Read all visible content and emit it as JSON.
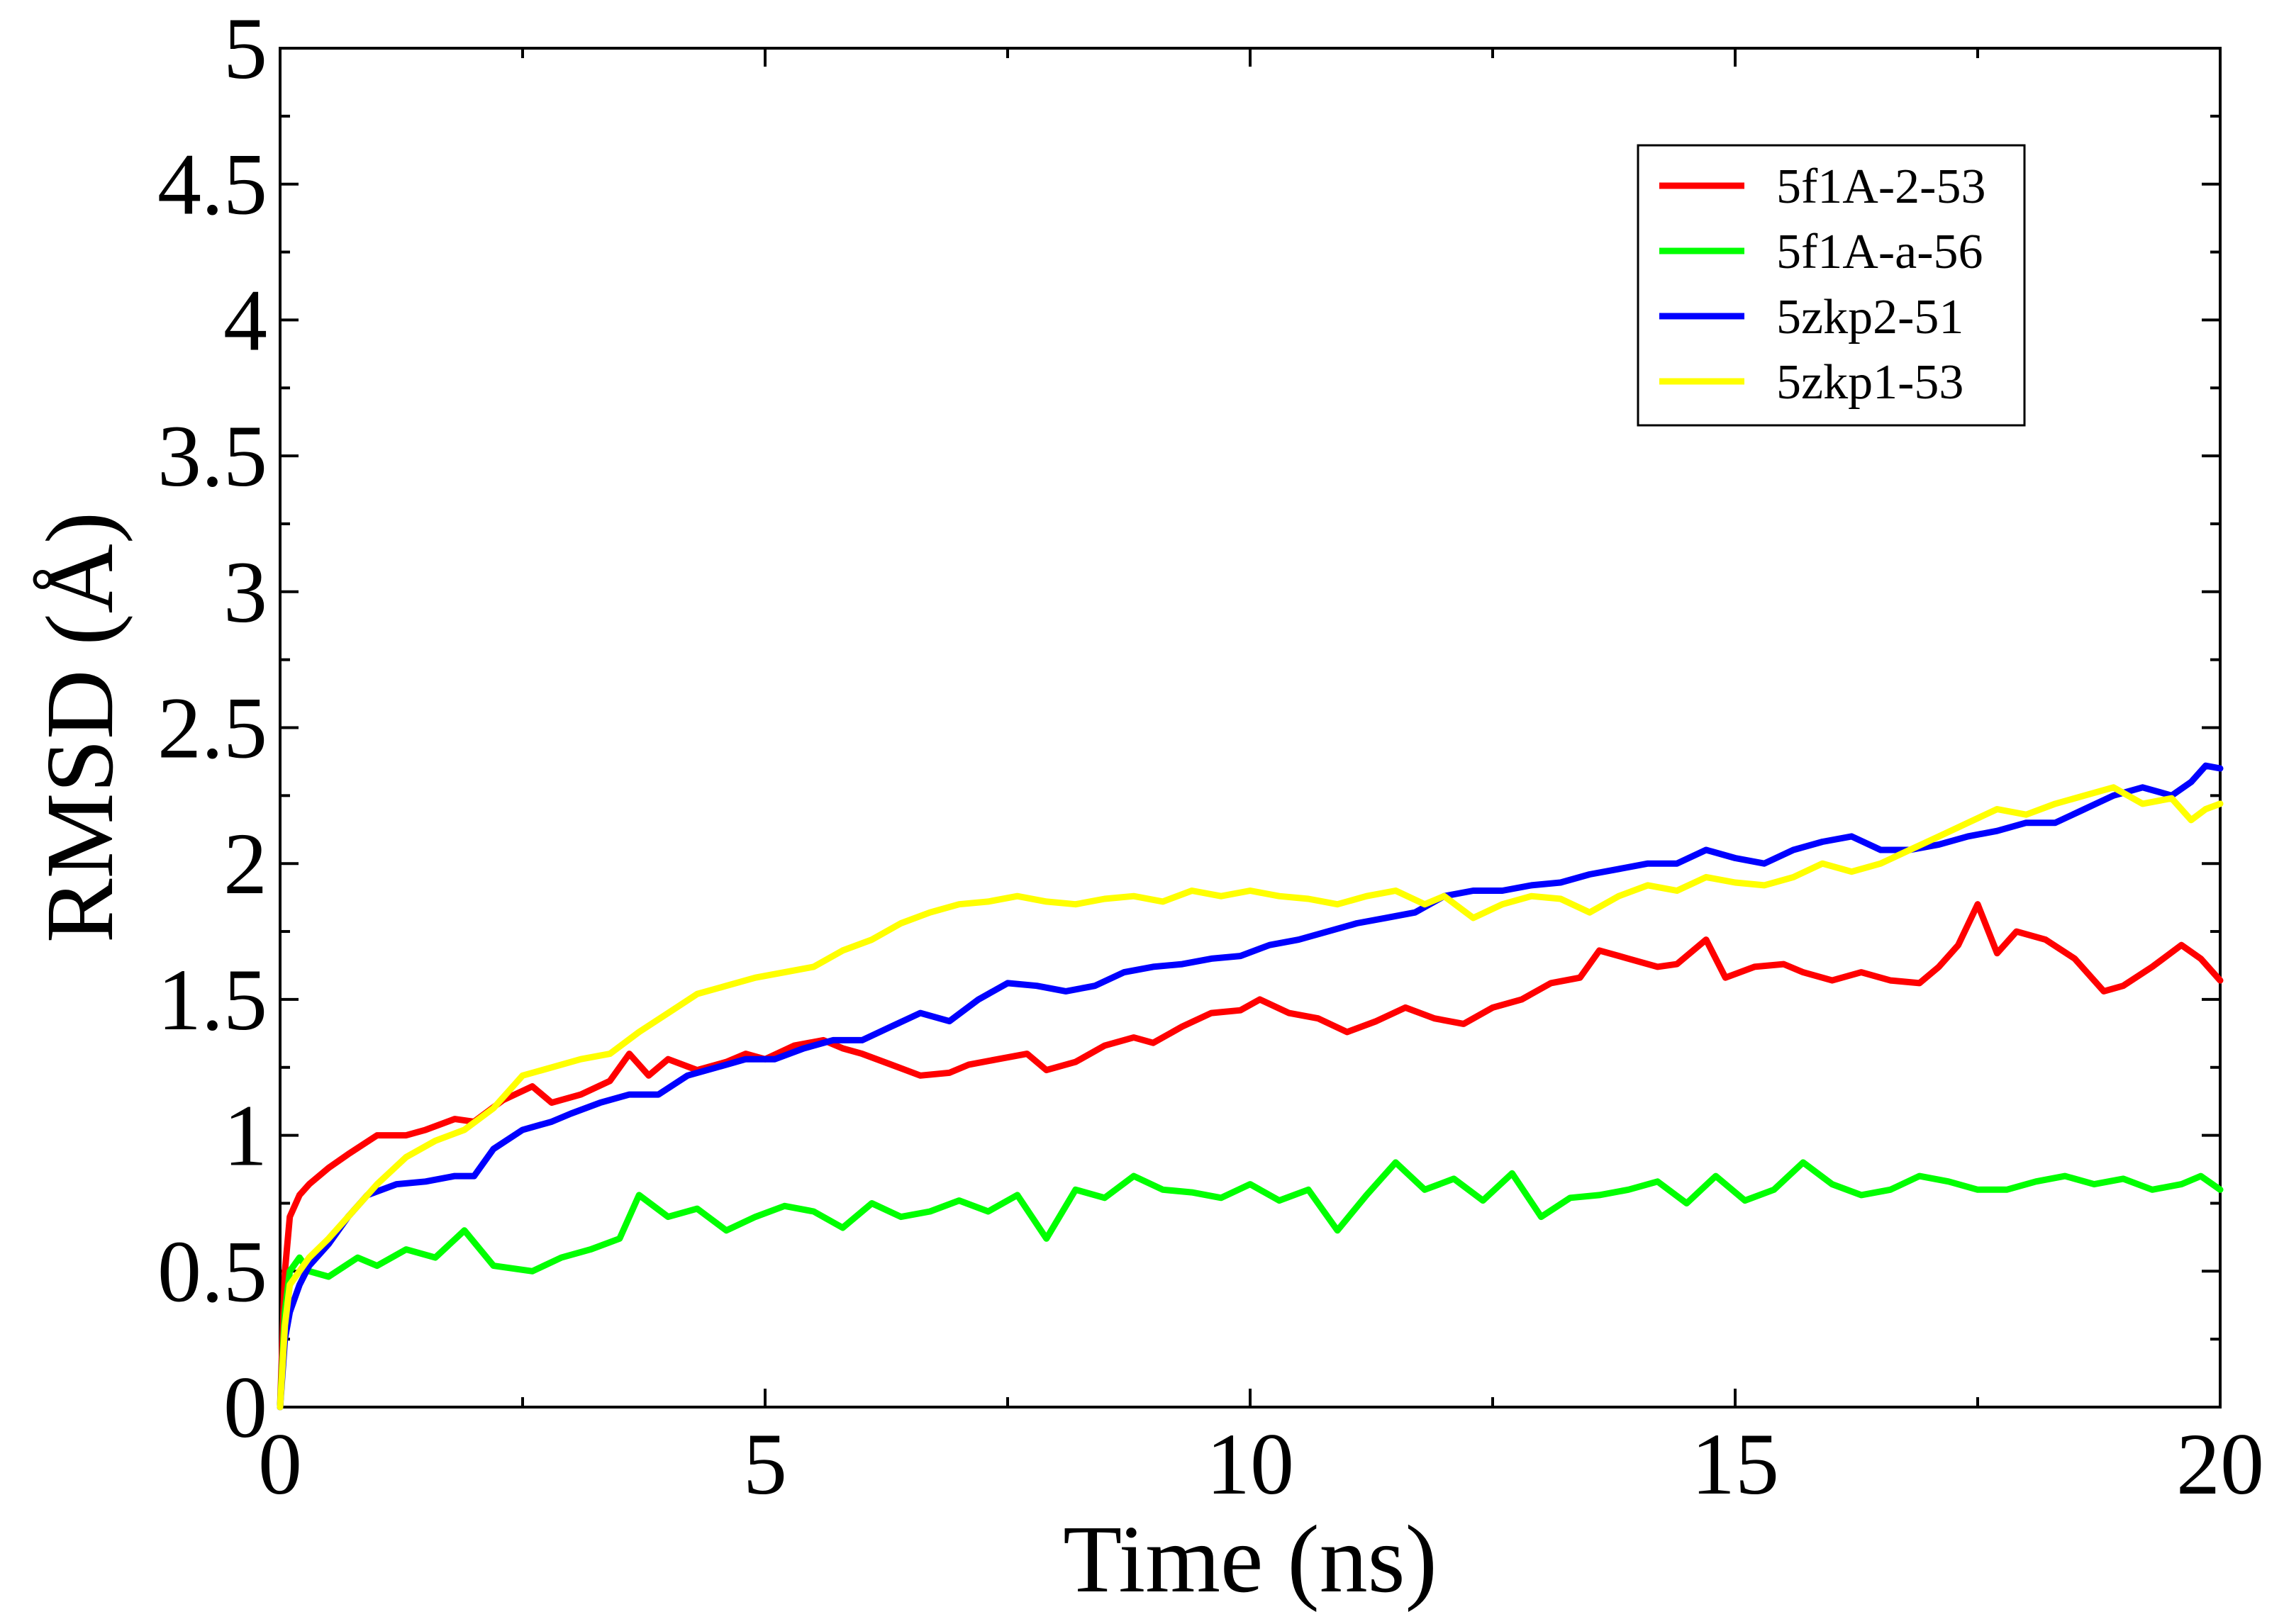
{
  "chart_data": {
    "type": "line",
    "title": "",
    "xlabel": "Time (ns)",
    "ylabel": "RMSD (Å)",
    "xlim": [
      0,
      20
    ],
    "ylim": [
      0,
      5
    ],
    "xticks": [
      0,
      5,
      10,
      15,
      20
    ],
    "yticks": [
      0,
      0.5,
      1,
      1.5,
      2,
      2.5,
      3,
      3.5,
      4,
      4.5,
      5
    ],
    "x_tick_labels": [
      "0",
      "5",
      "10",
      "15",
      "20"
    ],
    "y_tick_labels": [
      "0",
      "0.5",
      "1",
      "1.5",
      "2",
      "2.5",
      "3",
      "3.5",
      "4",
      "4.5",
      "5"
    ],
    "grid": false,
    "legend_position": "top-right",
    "series": [
      {
        "name": "5f1A-2-53",
        "color": "#ff0000",
        "x": [
          0,
          0.05,
          0.1,
          0.2,
          0.3,
          0.5,
          0.7,
          1.0,
          1.3,
          1.5,
          1.8,
          2.0,
          2.3,
          2.6,
          2.8,
          3.1,
          3.4,
          3.6,
          3.8,
          4.0,
          4.3,
          4.6,
          4.8,
          5.0,
          5.3,
          5.6,
          5.8,
          6.0,
          6.3,
          6.6,
          6.9,
          7.1,
          7.4,
          7.7,
          7.9,
          8.2,
          8.5,
          8.8,
          9.0,
          9.3,
          9.6,
          9.9,
          10.1,
          10.4,
          10.7,
          11.0,
          11.3,
          11.6,
          11.9,
          12.2,
          12.5,
          12.8,
          13.1,
          13.4,
          13.6,
          13.9,
          14.2,
          14.4,
          14.7,
          14.9,
          15.2,
          15.5,
          15.7,
          16.0,
          16.3,
          16.6,
          16.9,
          17.1,
          17.3,
          17.5,
          17.7,
          17.9,
          18.2,
          18.5,
          18.8,
          19.0,
          19.3,
          19.6,
          19.8,
          20.0
        ],
        "y": [
          0.0,
          0.5,
          0.7,
          0.78,
          0.82,
          0.88,
          0.93,
          1.0,
          1.0,
          1.02,
          1.06,
          1.05,
          1.13,
          1.18,
          1.12,
          1.15,
          1.2,
          1.3,
          1.22,
          1.28,
          1.24,
          1.27,
          1.3,
          1.28,
          1.33,
          1.35,
          1.32,
          1.3,
          1.26,
          1.22,
          1.23,
          1.26,
          1.28,
          1.3,
          1.24,
          1.27,
          1.33,
          1.36,
          1.34,
          1.4,
          1.45,
          1.46,
          1.5,
          1.45,
          1.43,
          1.38,
          1.42,
          1.47,
          1.43,
          1.41,
          1.47,
          1.5,
          1.56,
          1.58,
          1.68,
          1.65,
          1.62,
          1.63,
          1.72,
          1.58,
          1.62,
          1.63,
          1.6,
          1.57,
          1.6,
          1.57,
          1.56,
          1.62,
          1.7,
          1.85,
          1.67,
          1.75,
          1.72,
          1.65,
          1.53,
          1.55,
          1.62,
          1.7,
          1.65,
          1.57
        ]
      },
      {
        "name": "5f1A-a-56",
        "color": "#00ff00",
        "x": [
          0,
          0.05,
          0.1,
          0.2,
          0.3,
          0.5,
          0.8,
          1.0,
          1.3,
          1.6,
          1.9,
          2.2,
          2.6,
          2.9,
          3.2,
          3.5,
          3.7,
          4.0,
          4.3,
          4.6,
          4.9,
          5.2,
          5.5,
          5.8,
          6.1,
          6.4,
          6.7,
          7.0,
          7.3,
          7.6,
          7.9,
          8.2,
          8.5,
          8.8,
          9.1,
          9.4,
          9.7,
          10.0,
          10.3,
          10.6,
          10.9,
          11.2,
          11.5,
          11.8,
          12.1,
          12.4,
          12.7,
          13.0,
          13.3,
          13.6,
          13.9,
          14.2,
          14.5,
          14.8,
          15.1,
          15.4,
          15.7,
          16.0,
          16.3,
          16.6,
          16.9,
          17.2,
          17.5,
          17.8,
          18.1,
          18.4,
          18.7,
          19.0,
          19.3,
          19.6,
          19.8,
          20.0
        ],
        "y": [
          0.0,
          0.35,
          0.5,
          0.55,
          0.5,
          0.48,
          0.55,
          0.52,
          0.58,
          0.55,
          0.65,
          0.52,
          0.5,
          0.55,
          0.58,
          0.62,
          0.78,
          0.7,
          0.73,
          0.65,
          0.7,
          0.74,
          0.72,
          0.66,
          0.75,
          0.7,
          0.72,
          0.76,
          0.72,
          0.78,
          0.62,
          0.8,
          0.77,
          0.85,
          0.8,
          0.79,
          0.77,
          0.82,
          0.76,
          0.8,
          0.65,
          0.78,
          0.9,
          0.8,
          0.84,
          0.76,
          0.86,
          0.7,
          0.77,
          0.78,
          0.8,
          0.83,
          0.75,
          0.85,
          0.76,
          0.8,
          0.9,
          0.82,
          0.78,
          0.8,
          0.85,
          0.83,
          0.8,
          0.8,
          0.83,
          0.85,
          0.82,
          0.84,
          0.8,
          0.82,
          0.85,
          0.8
        ]
      },
      {
        "name": "5zkp2-51",
        "color": "#0000ff",
        "x": [
          0,
          0.05,
          0.1,
          0.2,
          0.3,
          0.5,
          0.7,
          0.9,
          1.2,
          1.5,
          1.8,
          2.0,
          2.2,
          2.5,
          2.8,
          3.0,
          3.3,
          3.6,
          3.9,
          4.2,
          4.5,
          4.8,
          5.1,
          5.4,
          5.7,
          6.0,
          6.3,
          6.6,
          6.9,
          7.2,
          7.5,
          7.8,
          8.1,
          8.4,
          8.7,
          9.0,
          9.3,
          9.6,
          9.9,
          10.2,
          10.5,
          10.8,
          11.1,
          11.4,
          11.7,
          12.0,
          12.3,
          12.6,
          12.9,
          13.2,
          13.5,
          13.8,
          14.1,
          14.4,
          14.7,
          15.0,
          15.3,
          15.6,
          15.9,
          16.2,
          16.5,
          16.8,
          17.1,
          17.4,
          17.7,
          18.0,
          18.3,
          18.6,
          18.9,
          19.2,
          19.5,
          19.7,
          19.85,
          20.0
        ],
        "y": [
          0.0,
          0.25,
          0.35,
          0.45,
          0.52,
          0.6,
          0.7,
          0.78,
          0.82,
          0.83,
          0.85,
          0.85,
          0.95,
          1.02,
          1.05,
          1.08,
          1.12,
          1.15,
          1.15,
          1.22,
          1.25,
          1.28,
          1.28,
          1.32,
          1.35,
          1.35,
          1.4,
          1.45,
          1.42,
          1.5,
          1.56,
          1.55,
          1.53,
          1.55,
          1.6,
          1.62,
          1.63,
          1.65,
          1.66,
          1.7,
          1.72,
          1.75,
          1.78,
          1.8,
          1.82,
          1.88,
          1.9,
          1.9,
          1.92,
          1.93,
          1.96,
          1.98,
          2.0,
          2.0,
          2.05,
          2.02,
          2.0,
          2.05,
          2.08,
          2.1,
          2.05,
          2.05,
          2.07,
          2.1,
          2.12,
          2.15,
          2.15,
          2.2,
          2.25,
          2.28,
          2.25,
          2.3,
          2.36,
          2.35
        ]
      },
      {
        "name": "5zkp1-53",
        "color": "#ffff00",
        "x": [
          0,
          0.05,
          0.1,
          0.2,
          0.3,
          0.5,
          0.7,
          1.0,
          1.3,
          1.6,
          1.9,
          2.2,
          2.5,
          2.8,
          3.1,
          3.4,
          3.7,
          4.0,
          4.3,
          4.6,
          4.9,
          5.2,
          5.5,
          5.8,
          6.1,
          6.4,
          6.7,
          7.0,
          7.3,
          7.6,
          7.9,
          8.2,
          8.5,
          8.8,
          9.1,
          9.4,
          9.7,
          10.0,
          10.3,
          10.6,
          10.9,
          11.2,
          11.5,
          11.8,
          12.0,
          12.3,
          12.6,
          12.9,
          13.2,
          13.5,
          13.8,
          14.1,
          14.4,
          14.7,
          15.0,
          15.3,
          15.6,
          15.9,
          16.2,
          16.5,
          16.8,
          17.1,
          17.4,
          17.7,
          18.0,
          18.3,
          18.6,
          18.9,
          19.2,
          19.5,
          19.7,
          19.85,
          20.0
        ],
        "y": [
          0.0,
          0.3,
          0.45,
          0.5,
          0.55,
          0.62,
          0.7,
          0.82,
          0.92,
          0.98,
          1.02,
          1.1,
          1.22,
          1.25,
          1.28,
          1.3,
          1.38,
          1.45,
          1.52,
          1.55,
          1.58,
          1.6,
          1.62,
          1.68,
          1.72,
          1.78,
          1.82,
          1.85,
          1.86,
          1.88,
          1.86,
          1.85,
          1.87,
          1.88,
          1.86,
          1.9,
          1.88,
          1.9,
          1.88,
          1.87,
          1.85,
          1.88,
          1.9,
          1.85,
          1.88,
          1.8,
          1.85,
          1.88,
          1.87,
          1.82,
          1.88,
          1.92,
          1.9,
          1.95,
          1.93,
          1.92,
          1.95,
          2.0,
          1.97,
          2.0,
          2.05,
          2.1,
          2.15,
          2.2,
          2.18,
          2.22,
          2.25,
          2.28,
          2.22,
          2.24,
          2.16,
          2.2,
          2.22
        ]
      }
    ]
  }
}
